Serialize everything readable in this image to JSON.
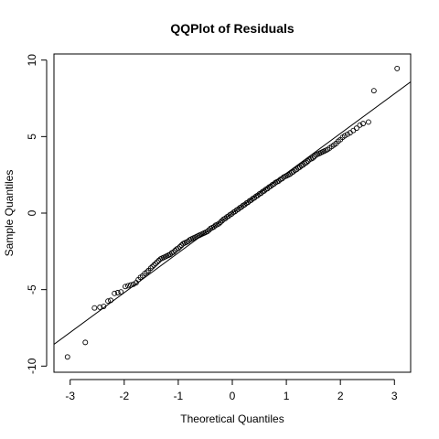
{
  "chart_data": {
    "type": "scatter",
    "title": "QQPlot of Residuals",
    "xlabel": "Theoretical Quantiles",
    "ylabel": "Sample Quantiles",
    "xlim": [
      -3.3,
      3.3
    ],
    "ylim": [
      -10.4,
      10.4
    ],
    "x_ticks": [
      -3,
      -2,
      -1,
      0,
      1,
      2,
      3
    ],
    "x_tick_labels": [
      "-3",
      "-2",
      "-1",
      "0",
      "1",
      "2",
      "3"
    ],
    "y_ticks": [
      -10,
      -5,
      0,
      5,
      10
    ],
    "y_tick_labels": [
      "-10",
      "-5",
      "0",
      "5",
      "10"
    ],
    "reference_line": {
      "intercept": 0.0,
      "slope": 2.6
    },
    "grid": false,
    "marker": "open-circle",
    "colors": {
      "points": "#000000",
      "line": "#000000"
    },
    "series": [
      {
        "points": [
          [
            -3.05,
            -9.4
          ],
          [
            -2.72,
            -8.45
          ],
          [
            -2.55,
            -6.2
          ],
          [
            -2.45,
            -6.15
          ],
          [
            -2.38,
            -6.1
          ],
          [
            -2.3,
            -5.75
          ],
          [
            -2.25,
            -5.7
          ],
          [
            -2.18,
            -5.25
          ],
          [
            -2.12,
            -5.2
          ],
          [
            -2.06,
            -5.15
          ],
          [
            -1.98,
            -4.8
          ],
          [
            -1.93,
            -4.75
          ],
          [
            -1.88,
            -4.7
          ],
          [
            -1.83,
            -4.65
          ],
          [
            -1.78,
            -4.55
          ],
          [
            -1.74,
            -4.35
          ],
          [
            -1.7,
            -4.2
          ],
          [
            -1.66,
            -4.1
          ],
          [
            -1.62,
            -3.95
          ],
          [
            -1.58,
            -3.85
          ],
          [
            -1.55,
            -3.75
          ],
          [
            -1.51,
            -3.6
          ],
          [
            -1.48,
            -3.5
          ],
          [
            -1.45,
            -3.4
          ],
          [
            -1.42,
            -3.3
          ],
          [
            -1.39,
            -3.2
          ],
          [
            -1.36,
            -3.1
          ],
          [
            -1.33,
            -3.0
          ],
          [
            -1.3,
            -2.95
          ],
          [
            -1.27,
            -2.9
          ],
          [
            -1.24,
            -2.85
          ],
          [
            -1.21,
            -2.8
          ],
          [
            -1.18,
            -2.75
          ],
          [
            -1.15,
            -2.7
          ],
          [
            -1.12,
            -2.6
          ],
          [
            -1.09,
            -2.55
          ],
          [
            -1.06,
            -2.45
          ],
          [
            -1.03,
            -2.35
          ],
          [
            -1.0,
            -2.3
          ],
          [
            -0.97,
            -2.2
          ],
          [
            -0.94,
            -2.1
          ],
          [
            -0.91,
            -2.0
          ],
          [
            -0.88,
            -1.95
          ],
          [
            -0.85,
            -1.9
          ],
          [
            -0.82,
            -1.85
          ],
          [
            -0.79,
            -1.75
          ],
          [
            -0.76,
            -1.7
          ],
          [
            -0.73,
            -1.65
          ],
          [
            -0.7,
            -1.6
          ],
          [
            -0.67,
            -1.55
          ],
          [
            -0.64,
            -1.5
          ],
          [
            -0.61,
            -1.45
          ],
          [
            -0.58,
            -1.4
          ],
          [
            -0.55,
            -1.35
          ],
          [
            -0.52,
            -1.3
          ],
          [
            -0.49,
            -1.25
          ],
          [
            -0.46,
            -1.2
          ],
          [
            -0.43,
            -1.1
          ],
          [
            -0.4,
            -1.0
          ],
          [
            -0.37,
            -0.95
          ],
          [
            -0.34,
            -0.9
          ],
          [
            -0.31,
            -0.8
          ],
          [
            -0.28,
            -0.75
          ],
          [
            -0.25,
            -0.7
          ],
          [
            -0.22,
            -0.6
          ],
          [
            -0.19,
            -0.5
          ],
          [
            -0.16,
            -0.4
          ],
          [
            -0.13,
            -0.35
          ],
          [
            -0.1,
            -0.25
          ],
          [
            -0.07,
            -0.2
          ],
          [
            -0.04,
            -0.1
          ],
          [
            -0.01,
            -0.05
          ],
          [
            0.02,
            0.05
          ],
          [
            0.05,
            0.1
          ],
          [
            0.08,
            0.2
          ],
          [
            0.11,
            0.25
          ],
          [
            0.14,
            0.35
          ],
          [
            0.17,
            0.4
          ],
          [
            0.2,
            0.5
          ],
          [
            0.23,
            0.55
          ],
          [
            0.26,
            0.65
          ],
          [
            0.29,
            0.7
          ],
          [
            0.32,
            0.8
          ],
          [
            0.35,
            0.85
          ],
          [
            0.38,
            0.95
          ],
          [
            0.41,
            1.0
          ],
          [
            0.44,
            1.1
          ],
          [
            0.47,
            1.15
          ],
          [
            0.5,
            1.25
          ],
          [
            0.53,
            1.3
          ],
          [
            0.56,
            1.4
          ],
          [
            0.59,
            1.45
          ],
          [
            0.62,
            1.55
          ],
          [
            0.65,
            1.6
          ],
          [
            0.68,
            1.7
          ],
          [
            0.71,
            1.75
          ],
          [
            0.74,
            1.85
          ],
          [
            0.77,
            1.9
          ],
          [
            0.8,
            2.0
          ],
          [
            0.83,
            2.05
          ],
          [
            0.86,
            2.1
          ],
          [
            0.89,
            2.2
          ],
          [
            0.92,
            2.25
          ],
          [
            0.95,
            2.35
          ],
          [
            0.98,
            2.4
          ],
          [
            1.01,
            2.45
          ],
          [
            1.04,
            2.5
          ],
          [
            1.07,
            2.55
          ],
          [
            1.1,
            2.65
          ],
          [
            1.13,
            2.7
          ],
          [
            1.16,
            2.8
          ],
          [
            1.19,
            2.85
          ],
          [
            1.22,
            2.95
          ],
          [
            1.25,
            3.0
          ],
          [
            1.28,
            3.1
          ],
          [
            1.31,
            3.15
          ],
          [
            1.34,
            3.25
          ],
          [
            1.37,
            3.3
          ],
          [
            1.4,
            3.4
          ],
          [
            1.43,
            3.5
          ],
          [
            1.46,
            3.55
          ],
          [
            1.49,
            3.6
          ],
          [
            1.52,
            3.7
          ],
          [
            1.55,
            3.8
          ],
          [
            1.58,
            3.85
          ],
          [
            1.61,
            3.9
          ],
          [
            1.64,
            3.95
          ],
          [
            1.67,
            4.0
          ],
          [
            1.7,
            4.05
          ],
          [
            1.73,
            4.1
          ],
          [
            1.76,
            4.15
          ],
          [
            1.8,
            4.25
          ],
          [
            1.84,
            4.35
          ],
          [
            1.88,
            4.45
          ],
          [
            1.92,
            4.55
          ],
          [
            1.96,
            4.7
          ],
          [
            2.0,
            4.8
          ],
          [
            2.04,
            4.95
          ],
          [
            2.08,
            5.05
          ],
          [
            2.13,
            5.15
          ],
          [
            2.18,
            5.25
          ],
          [
            2.24,
            5.4
          ],
          [
            2.3,
            5.55
          ],
          [
            2.36,
            5.75
          ],
          [
            2.42,
            5.85
          ],
          [
            2.52,
            5.95
          ],
          [
            2.62,
            8.0
          ],
          [
            3.05,
            9.45
          ]
        ]
      }
    ]
  }
}
